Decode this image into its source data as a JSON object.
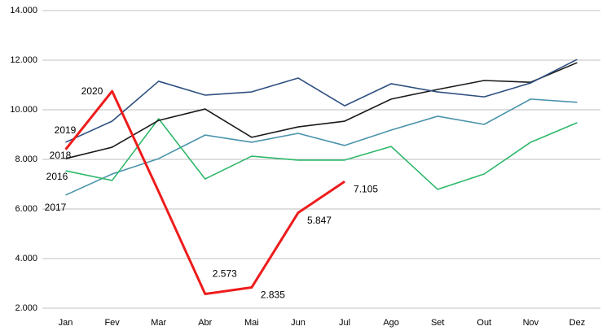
{
  "chart_data": {
    "type": "line",
    "categories": [
      "Jan",
      "Fev",
      "Mar",
      "Abr",
      "Mai",
      "Jun",
      "Jul",
      "Ago",
      "Set",
      "Out",
      "Nov",
      "Dez"
    ],
    "ylim": [
      2000,
      14000
    ],
    "yticks": [
      {
        "value": 2000,
        "label": "2.000"
      },
      {
        "value": 4000,
        "label": "4.000"
      },
      {
        "value": 6000,
        "label": "6.000"
      },
      {
        "value": 8000,
        "label": "8.000"
      },
      {
        "value": 10000,
        "label": "10.000"
      },
      {
        "value": 12000,
        "label": "12.000"
      },
      {
        "value": 14000,
        "label": "14.000"
      }
    ],
    "grid": true,
    "series": [
      {
        "name": "2017",
        "color": "#4a93ab",
        "values": [
          6560,
          7410,
          8030,
          8980,
          8690,
          9050,
          8560,
          9180,
          9740,
          9410,
          10430,
          10300
        ]
      },
      {
        "name": "2016",
        "color": "#2eb86b",
        "values": [
          7540,
          7150,
          9640,
          7210,
          8130,
          7970,
          7970,
          8520,
          6790,
          7410,
          8690,
          9480
        ]
      },
      {
        "name": "2018",
        "color": "#1a1a1a",
        "values": [
          8030,
          8490,
          9570,
          10030,
          8890,
          9310,
          9540,
          10430,
          10820,
          11180,
          11110,
          11900
        ]
      },
      {
        "name": "2019",
        "color": "#2e4f80",
        "values": [
          8690,
          9540,
          11150,
          10590,
          10720,
          11280,
          10160,
          11050,
          10720,
          10520,
          11080,
          12030
        ]
      },
      {
        "name": "2020",
        "color": "#ee1c1c",
        "values": [
          8400,
          10750,
          6700,
          2573,
          2835,
          5847,
          7105,
          null,
          null,
          null,
          null,
          null
        ],
        "value_labels": [
          null,
          null,
          null,
          "2.573",
          "2.835",
          "5.847",
          "7.105",
          null,
          null,
          null,
          null,
          null
        ]
      }
    ]
  }
}
